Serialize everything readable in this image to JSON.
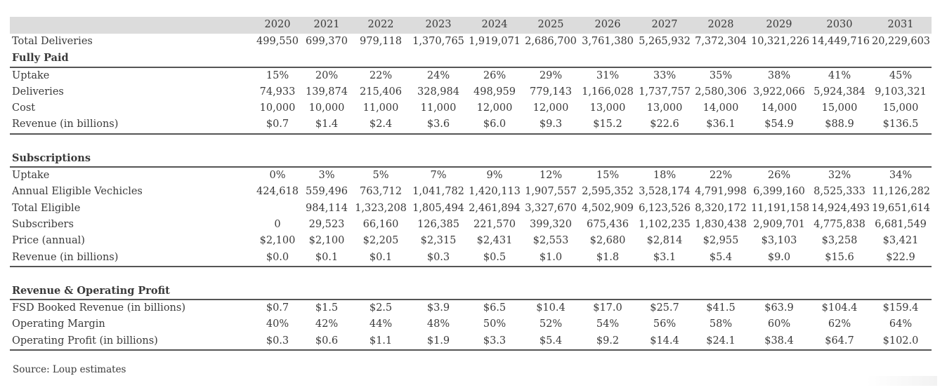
{
  "years": [
    "2020",
    "2021",
    "2022",
    "2023",
    "2024",
    "2025",
    "2026",
    "2027",
    "2028",
    "2029",
    "2030",
    "2031"
  ],
  "top_rows": [
    {
      "label": "Total Deliveries",
      "values": [
        "499,550",
        "699,370",
        "979,118",
        "1,370,765",
        "1,919,071",
        "2,686,700",
        "3,761,380",
        "5,265,932",
        "7,372,304",
        "10,321,226",
        "14,449,716",
        "20,229,603"
      ]
    }
  ],
  "sections": [
    {
      "title": "Fully Paid",
      "rows": [
        {
          "label": "Uptake",
          "values": [
            "15%",
            "20%",
            "22%",
            "24%",
            "26%",
            "29%",
            "31%",
            "33%",
            "35%",
            "38%",
            "41%",
            "45%"
          ]
        },
        {
          "label": "Deliveries",
          "values": [
            "74,933",
            "139,874",
            "215,406",
            "328,984",
            "498,959",
            "779,143",
            "1,166,028",
            "1,737,757",
            "2,580,306",
            "3,922,066",
            "5,924,384",
            "9,103,321"
          ]
        },
        {
          "label": "Cost",
          "values": [
            "10,000",
            "10,000",
            "11,000",
            "11,000",
            "12,000",
            "12,000",
            "13,000",
            "13,000",
            "14,000",
            "14,000",
            "15,000",
            "15,000"
          ]
        },
        {
          "label": "Revenue (in billions)",
          "values": [
            "$0.7",
            "$1.4",
            "$2.4",
            "$3.6",
            "$6.0",
            "$9.3",
            "$15.2",
            "$22.6",
            "$36.1",
            "$54.9",
            "$88.9",
            "$136.5"
          ]
        }
      ]
    },
    {
      "title": "Subscriptions",
      "rows": [
        {
          "label": "Uptake",
          "values": [
            "0%",
            "3%",
            "5%",
            "7%",
            "9%",
            "12%",
            "15%",
            "18%",
            "22%",
            "26%",
            "32%",
            "34%"
          ]
        },
        {
          "label": "Annual Eligible Vechicles",
          "values": [
            "424,618",
            "559,496",
            "763,712",
            "1,041,782",
            "1,420,113",
            "1,907,557",
            "2,595,352",
            "3,528,174",
            "4,791,998",
            "6,399,160",
            "8,525,333",
            "11,126,282"
          ]
        },
        {
          "label": "Total Eligible",
          "values": [
            "",
            "984,114",
            "1,323,208",
            "1,805,494",
            "2,461,894",
            "3,327,670",
            "4,502,909",
            "6,123,526",
            "8,320,172",
            "11,191,158",
            "14,924,493",
            "19,651,614"
          ]
        },
        {
          "label": "Subscribers",
          "values": [
            "0",
            "29,523",
            "66,160",
            "126,385",
            "221,570",
            "399,320",
            "675,436",
            "1,102,235",
            "1,830,438",
            "2,909,701",
            "4,775,838",
            "6,681,549"
          ]
        },
        {
          "label": "Price (annual)",
          "values": [
            "$2,100",
            "$2,100",
            "$2,205",
            "$2,315",
            "$2,431",
            "$2,553",
            "$2,680",
            "$2,814",
            "$2,955",
            "$3,103",
            "$3,258",
            "$3,421"
          ]
        },
        {
          "label": "Revenue (in billions)",
          "values": [
            "$0.0",
            "$0.1",
            "$0.1",
            "$0.3",
            "$0.5",
            "$1.0",
            "$1.8",
            "$3.1",
            "$5.4",
            "$9.0",
            "$15.6",
            "$22.9"
          ]
        }
      ]
    },
    {
      "title": "Revenue & Operating Profit",
      "rows": [
        {
          "label": "FSD Booked Revenue (in billions)",
          "values": [
            "$0.7",
            "$1.5",
            "$2.5",
            "$3.9",
            "$6.5",
            "$10.4",
            "$17.0",
            "$25.7",
            "$41.5",
            "$63.9",
            "$104.4",
            "$159.4"
          ]
        },
        {
          "label": "Operating Margin",
          "values": [
            "40%",
            "42%",
            "44%",
            "48%",
            "50%",
            "52%",
            "54%",
            "56%",
            "58%",
            "60%",
            "62%",
            "64%"
          ]
        },
        {
          "label": "Operating Profit (in billions)",
          "values": [
            "$0.3",
            "$0.6",
            "$1.1",
            "$1.9",
            "$3.3",
            "$5.4",
            "$9.2",
            "$14.4",
            "$24.1",
            "$38.4",
            "$64.7",
            "$102.0"
          ]
        }
      ]
    }
  ],
  "source": "Source: Loup estimates"
}
